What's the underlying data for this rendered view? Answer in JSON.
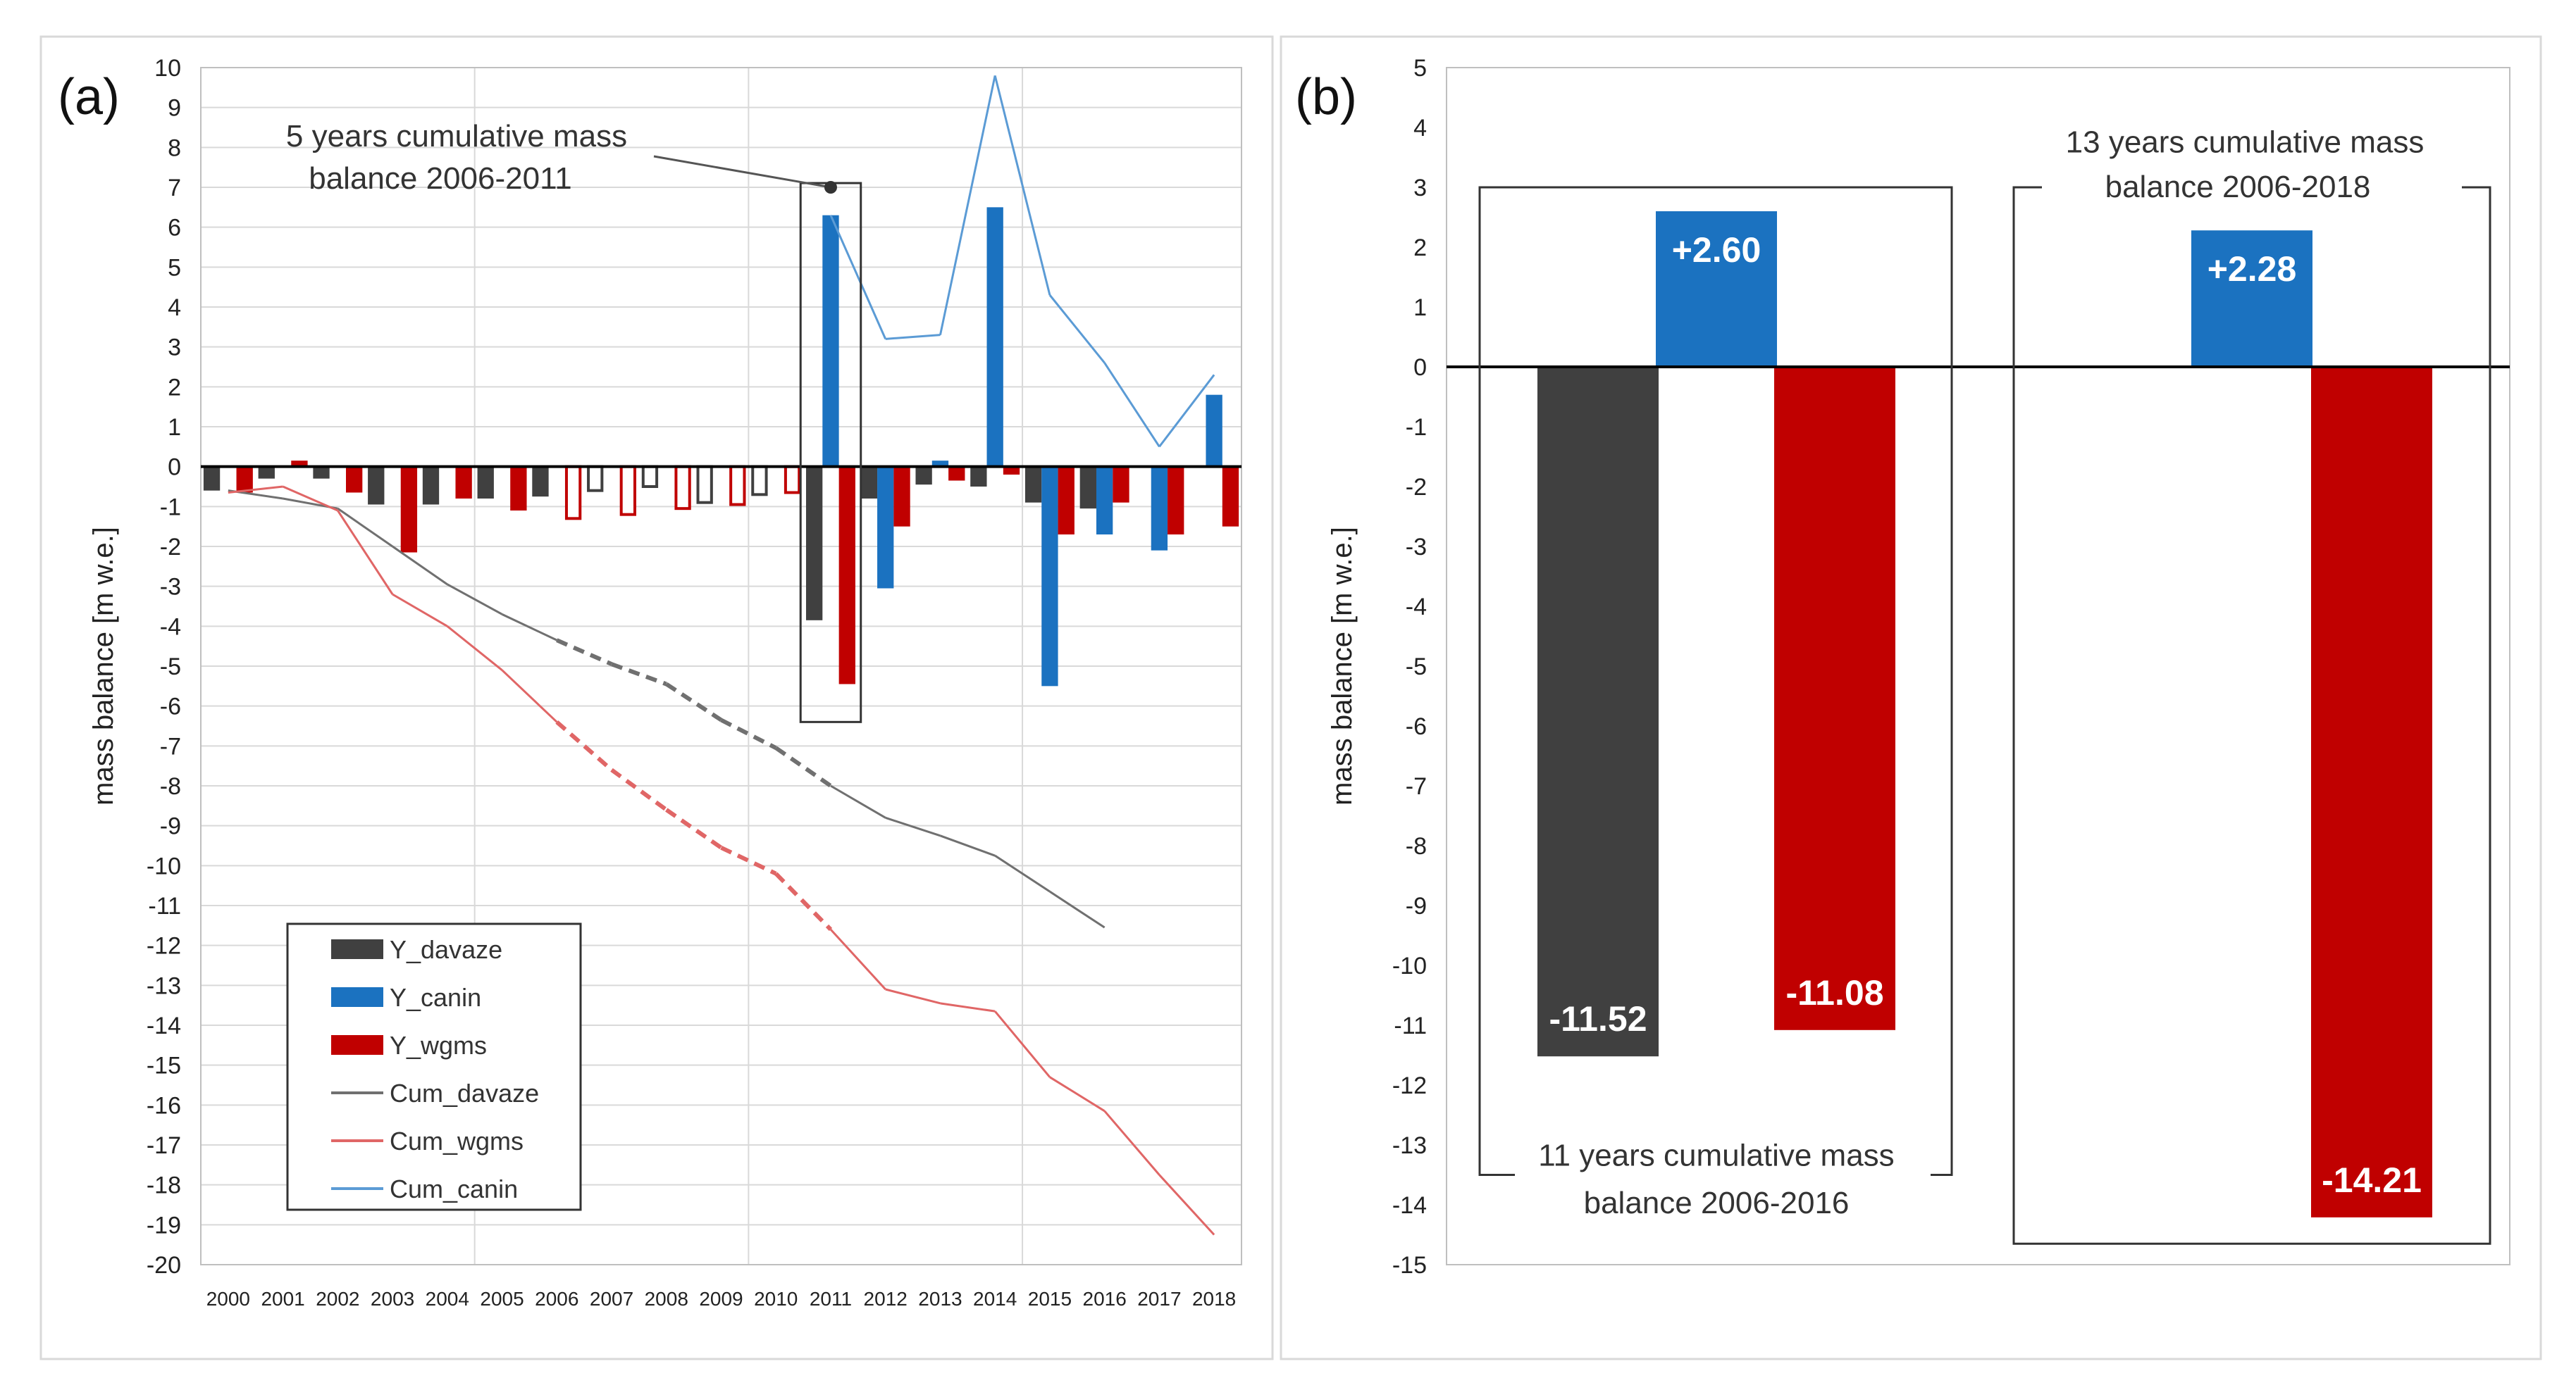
{
  "chart_data": [
    {
      "panel_label": "(a)",
      "type": "bar",
      "ylabel": "mass balance [m w.e.]",
      "ylim": [
        -20,
        10
      ],
      "ystep": 1,
      "grid": true,
      "x": [
        "2000",
        "2001",
        "2002",
        "2003",
        "2004",
        "2005",
        "2006",
        "2007",
        "2008",
        "2009",
        "2010",
        "2011",
        "2012",
        "2013",
        "2014",
        "2015",
        "2016",
        "2017",
        "2018"
      ],
      "annotation": {
        "lines": [
          "5 years cumulative mass",
          "balance 2006-2011"
        ],
        "points_to_year": "2011",
        "points_to_value": 7
      },
      "highlight_year": "2011",
      "bar_series": [
        {
          "name": "Y_davaze",
          "color": "#404040",
          "values": [
            -0.6,
            -0.3,
            -0.3,
            -0.95,
            -0.95,
            -0.8,
            -0.75,
            null,
            null,
            null,
            null,
            -3.85,
            -0.8,
            -0.45,
            -0.5,
            -0.9,
            -1.05,
            null,
            null
          ],
          "hollow": [
            null,
            null,
            null,
            null,
            null,
            null,
            null,
            -0.6,
            -0.5,
            -0.9,
            -0.7,
            null,
            null,
            null,
            null,
            null,
            null,
            null,
            null
          ]
        },
        {
          "name": "Y_canin",
          "color": "#1b72c0",
          "values": [
            null,
            null,
            null,
            null,
            null,
            null,
            null,
            null,
            null,
            null,
            null,
            6.3,
            -3.05,
            0.15,
            6.5,
            -5.5,
            -1.7,
            -2.1,
            1.8
          ],
          "hollow": [
            null,
            null,
            null,
            null,
            null,
            null,
            null,
            null,
            null,
            null,
            null,
            null,
            null,
            null,
            null,
            null,
            null,
            null,
            null
          ]
        },
        {
          "name": "Y_wgms",
          "color": "#c00000",
          "values": [
            -0.65,
            0.15,
            -0.65,
            -2.15,
            -0.8,
            -1.1,
            null,
            null,
            null,
            null,
            null,
            -5.45,
            -1.5,
            -0.35,
            -0.2,
            -1.7,
            -0.9,
            -1.7,
            -1.5
          ],
          "hollow": [
            null,
            null,
            null,
            null,
            null,
            null,
            -1.3,
            -1.2,
            -1.05,
            -0.95,
            -0.65,
            null,
            null,
            null,
            null,
            null,
            null,
            null,
            null
          ]
        }
      ],
      "line_series": [
        {
          "name": "Cum_davaze",
          "color": "#707070",
          "dashed_years": [
            "2006",
            "2011"
          ],
          "values": [
            -0.6,
            -0.8,
            -1.05,
            -2.0,
            -2.95,
            -3.7,
            -4.35,
            -4.95,
            -5.45,
            -6.35,
            -7.05,
            -8.0,
            -8.8,
            -9.25,
            -9.75,
            -10.65,
            -11.55,
            null,
            null
          ]
        },
        {
          "name": "Cum_wgms",
          "color": "#e06666",
          "dashed_years": [
            "2006",
            "2011"
          ],
          "values": [
            -0.65,
            -0.5,
            -1.1,
            -3.2,
            -4.0,
            -5.1,
            -6.4,
            -7.6,
            -8.6,
            -9.55,
            -10.2,
            -11.6,
            -13.1,
            -13.45,
            -13.65,
            -15.3,
            -16.15,
            -17.75,
            -19.25
          ]
        },
        {
          "name": "Cum_canin",
          "color": "#5b9bd5",
          "dashed_years": [],
          "values": [
            null,
            null,
            null,
            null,
            null,
            null,
            null,
            null,
            null,
            null,
            null,
            6.3,
            3.2,
            3.3,
            9.8,
            4.3,
            2.6,
            0.5,
            2.3
          ]
        }
      ],
      "legend": [
        "Y_davaze",
        "Y_canin",
        "Y_wgms",
        "Cum_davaze",
        "Cum_wgms",
        "Cum_canin"
      ]
    },
    {
      "panel_label": "(b)",
      "type": "bar",
      "ylabel": "mass balance [m w.e.]",
      "ylim": [
        -15,
        5
      ],
      "ystep": 1,
      "grid": false,
      "groups": [
        {
          "caption_lines": [
            "11 years cumulative mass",
            "balance 2006-2016"
          ],
          "bars": [
            {
              "series": "Y_davaze",
              "value": -11.52,
              "label": "-11.52",
              "color": "#404040"
            },
            {
              "series": "Y_canin",
              "value": 2.6,
              "label": "+2.60",
              "color": "#1b72c0"
            },
            {
              "series": "Y_wgms",
              "value": -11.08,
              "label": "-11.08",
              "color": "#c00000"
            }
          ]
        },
        {
          "caption_lines": [
            "13 years cumulative mass",
            "balance 2006-2018"
          ],
          "bars": [
            {
              "series": "Y_canin",
              "value": 2.28,
              "label": "+2.28",
              "color": "#1b72c0"
            },
            {
              "series": "Y_wgms",
              "value": -14.21,
              "label": "-14.21",
              "color": "#c00000"
            }
          ]
        }
      ]
    }
  ]
}
